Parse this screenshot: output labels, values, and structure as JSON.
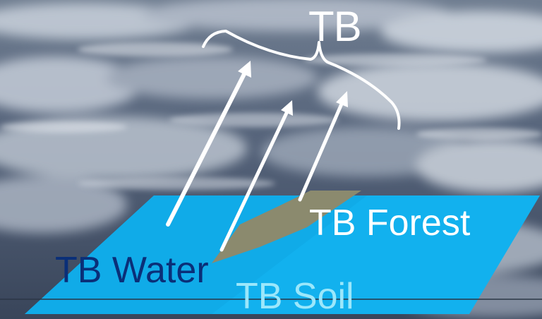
{
  "labels": {
    "tb": "TB",
    "tb_forest": "TB Forest",
    "tb_water": "TB Water",
    "tb_soil": "TB Soil"
  },
  "colors": {
    "water_surface": "#12b1ee",
    "forest_patch": "#8b8a6e",
    "arrow": "#ffffff",
    "water_label": "#0a2f78",
    "soil_label": "#9be7fb"
  }
}
